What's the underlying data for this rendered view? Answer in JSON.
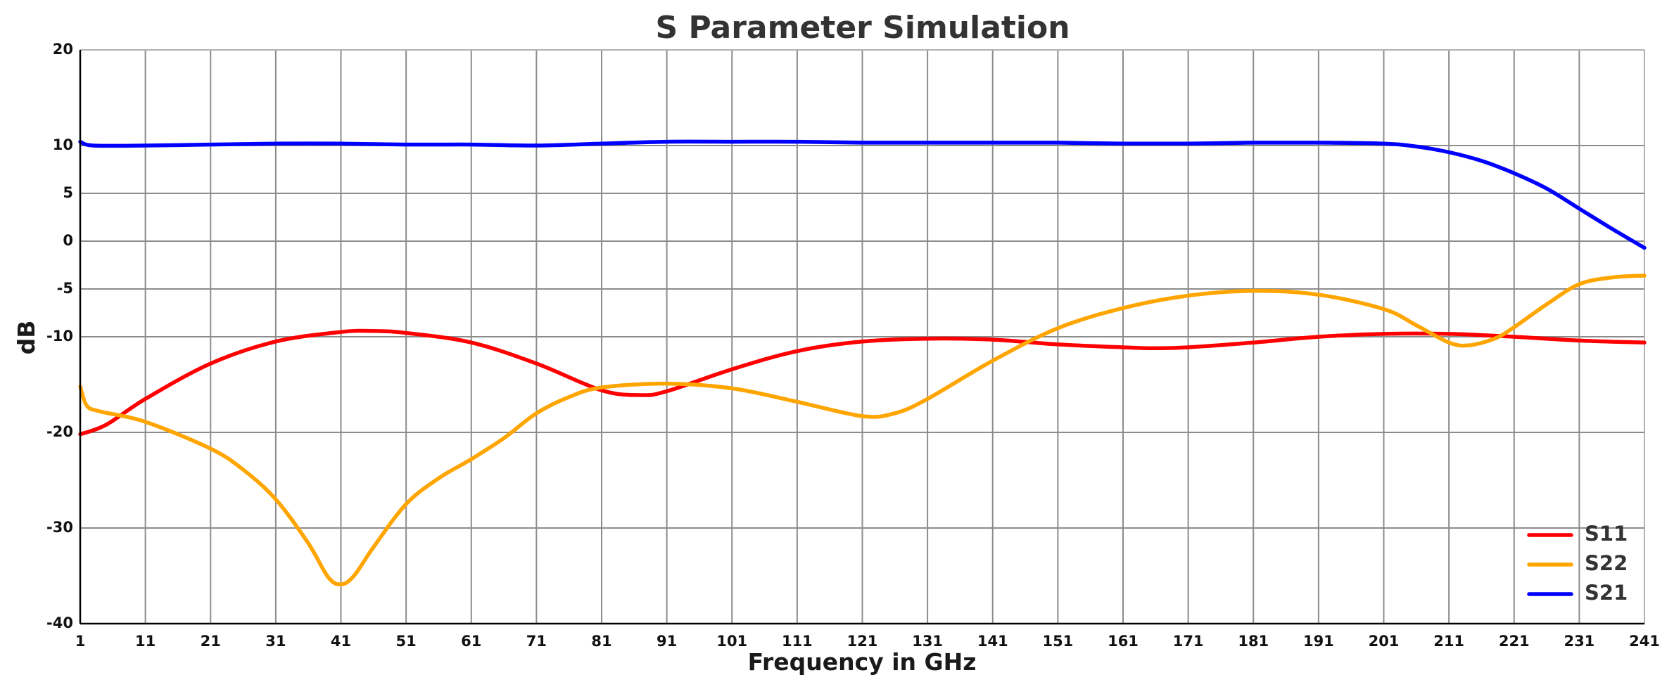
{
  "chart_data": {
    "type": "line",
    "title": "S Parameter Simulation",
    "xlabel": "Frequency in GHz",
    "ylabel": "dB",
    "xlim": [
      1,
      241
    ],
    "ylim": [
      -40,
      20
    ],
    "xticks": [
      1,
      11,
      21,
      31,
      41,
      51,
      61,
      71,
      81,
      91,
      101,
      111,
      121,
      131,
      141,
      151,
      161,
      171,
      181,
      191,
      201,
      211,
      221,
      231,
      241
    ],
    "yticks": [
      20,
      10,
      5,
      0,
      -5,
      -10,
      -20,
      -30,
      -40
    ],
    "grid": true,
    "legend_position": "bottom-right",
    "series": [
      {
        "name": "S11",
        "color": "#ff0000",
        "x": [
          1,
          5,
          11,
          21,
          31,
          41,
          46,
          51,
          61,
          71,
          81,
          87,
          91,
          101,
          111,
          121,
          131,
          141,
          151,
          161,
          166,
          171,
          181,
          191,
          201,
          211,
          221,
          231,
          241
        ],
        "y": [
          -20.2,
          -19.2,
          -16.5,
          -12.8,
          -10.5,
          -9.5,
          -9.4,
          -9.6,
          -10.6,
          -12.8,
          -15.6,
          -16.1,
          -15.7,
          -13.4,
          -11.5,
          -10.5,
          -10.2,
          -10.3,
          -10.8,
          -11.1,
          -11.2,
          -11.1,
          -10.6,
          -10.0,
          -9.7,
          -9.7,
          -10.0,
          -10.4,
          -10.6
        ]
      },
      {
        "name": "S22",
        "color": "#ffa500",
        "x": [
          1,
          2,
          4,
          11,
          21,
          26,
          31,
          36,
          39,
          41,
          43,
          46,
          51,
          56,
          61,
          66,
          71,
          76,
          81,
          91,
          101,
          111,
          121,
          126,
          131,
          141,
          151,
          161,
          171,
          181,
          191,
          201,
          206,
          211,
          214,
          218,
          221,
          226,
          231,
          236,
          241
        ],
        "y": [
          -15.2,
          -17.2,
          -17.8,
          -18.9,
          -21.7,
          -23.9,
          -27.0,
          -31.6,
          -35.1,
          -35.9,
          -35.0,
          -32.0,
          -27.5,
          -24.8,
          -22.8,
          -20.6,
          -18.0,
          -16.3,
          -15.3,
          -14.9,
          -15.4,
          -16.8,
          -18.3,
          -18.0,
          -16.5,
          -12.5,
          -9.1,
          -7.0,
          -5.7,
          -5.2,
          -5.6,
          -7.1,
          -8.8,
          -10.6,
          -10.9,
          -10.2,
          -9.0,
          -6.6,
          -4.5,
          -3.8,
          -3.6
        ]
      },
      {
        "name": "S21",
        "color": "#0000ff",
        "x": [
          1,
          3,
          11,
          21,
          31,
          41,
          51,
          61,
          71,
          81,
          91,
          101,
          111,
          121,
          131,
          141,
          151,
          161,
          171,
          181,
          191,
          201,
          206,
          211,
          216,
          221,
          226,
          231,
          236,
          241
        ],
        "y": [
          10.4,
          10.0,
          10.0,
          10.1,
          10.2,
          10.2,
          10.1,
          10.1,
          10.0,
          10.2,
          10.4,
          10.4,
          10.4,
          10.3,
          10.3,
          10.3,
          10.3,
          10.2,
          10.2,
          10.3,
          10.3,
          10.2,
          9.9,
          9.3,
          8.4,
          7.1,
          5.5,
          3.4,
          1.3,
          -0.7
        ]
      }
    ]
  }
}
